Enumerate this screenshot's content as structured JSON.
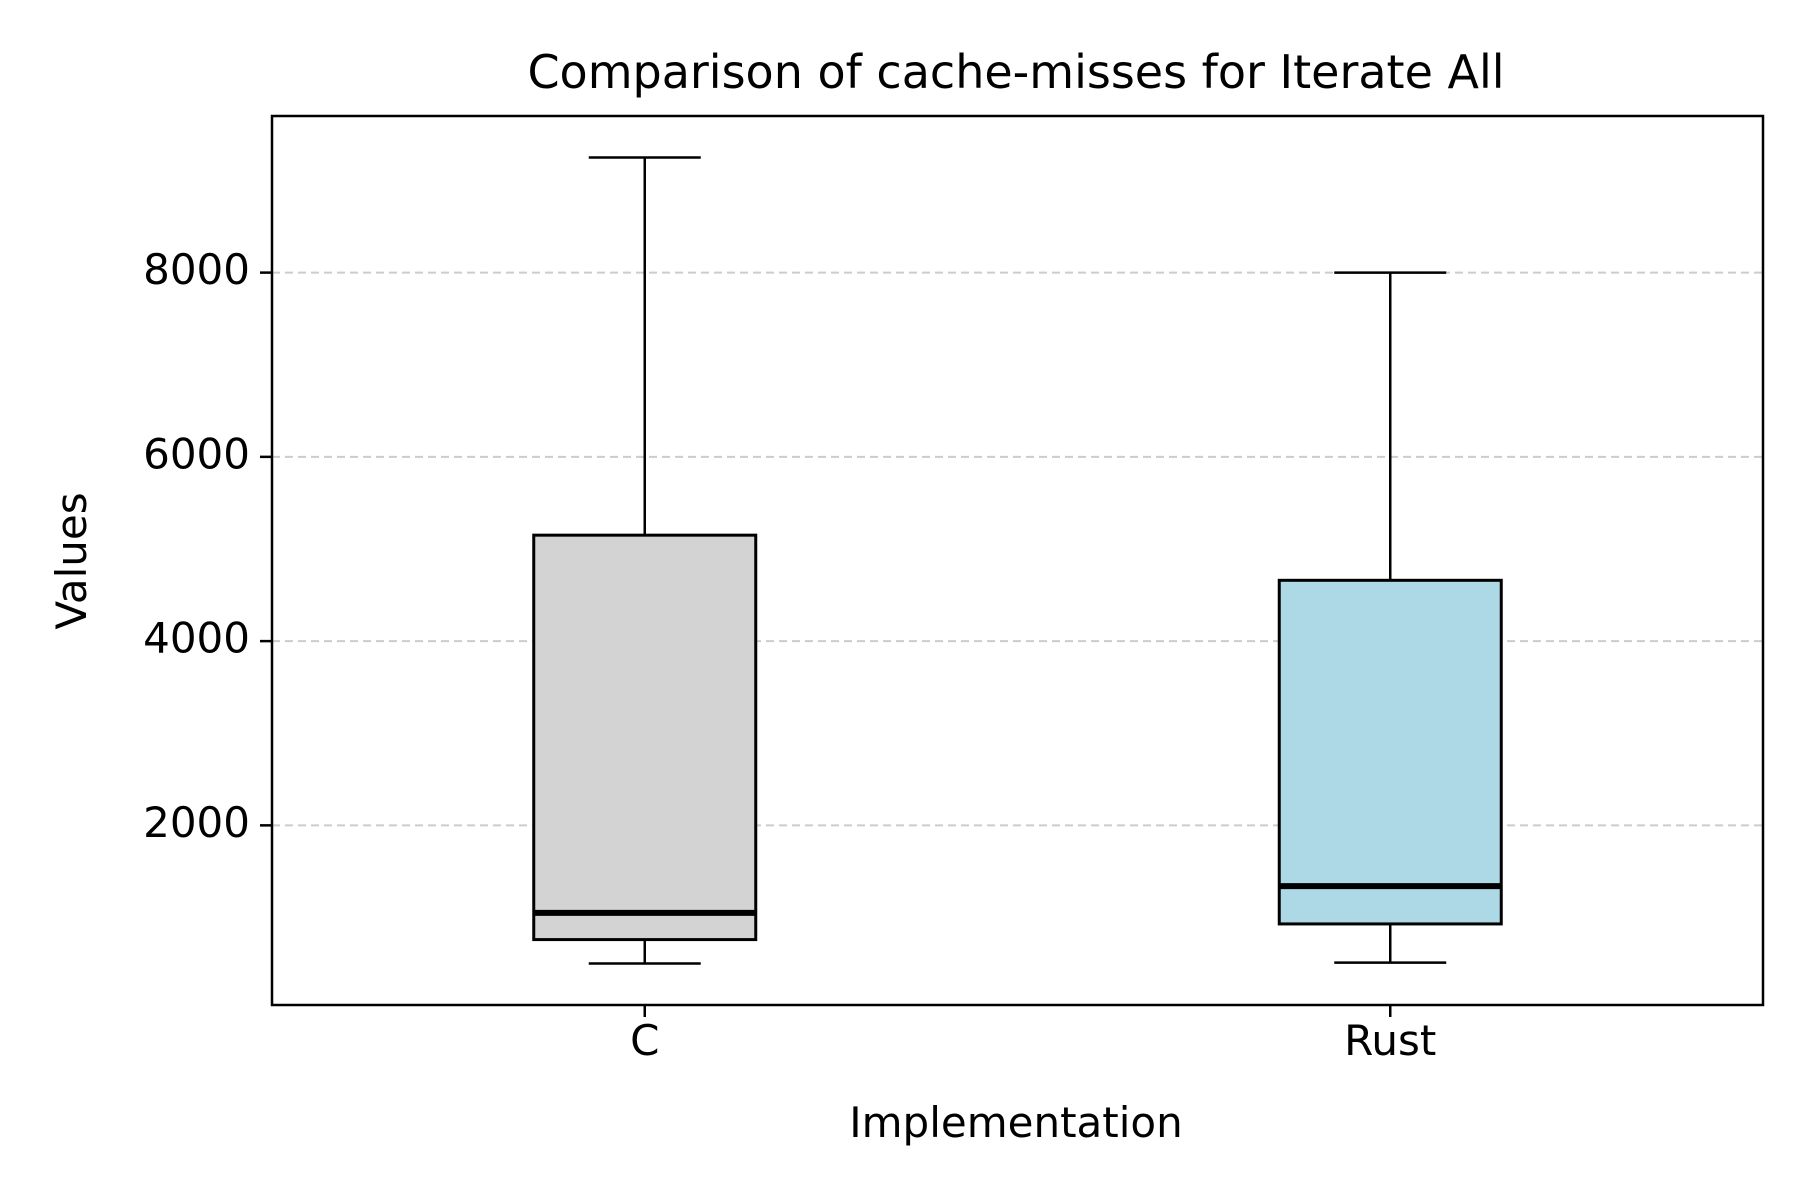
{
  "chart_data": {
    "type": "box",
    "title": "Comparison of cache-misses for Iterate All",
    "xlabel": "Implementation",
    "ylabel": "Values",
    "ylim": [
      50,
      9700
    ],
    "yticks": [
      2000,
      4000,
      6000,
      8000
    ],
    "grid": {
      "axis": "y",
      "style": "dashed",
      "color": "#cccccc"
    },
    "categories": [
      "C",
      "Rust"
    ],
    "series": [
      {
        "category": "C",
        "whisker_low": 500,
        "q1": 760,
        "median": 1050,
        "q3": 5150,
        "whisker_high": 9250,
        "fill": "#d3d3d3"
      },
      {
        "category": "Rust",
        "whisker_low": 510,
        "q1": 930,
        "median": 1340,
        "q3": 4660,
        "whisker_high": 8000,
        "fill": "#add8e6"
      }
    ]
  }
}
